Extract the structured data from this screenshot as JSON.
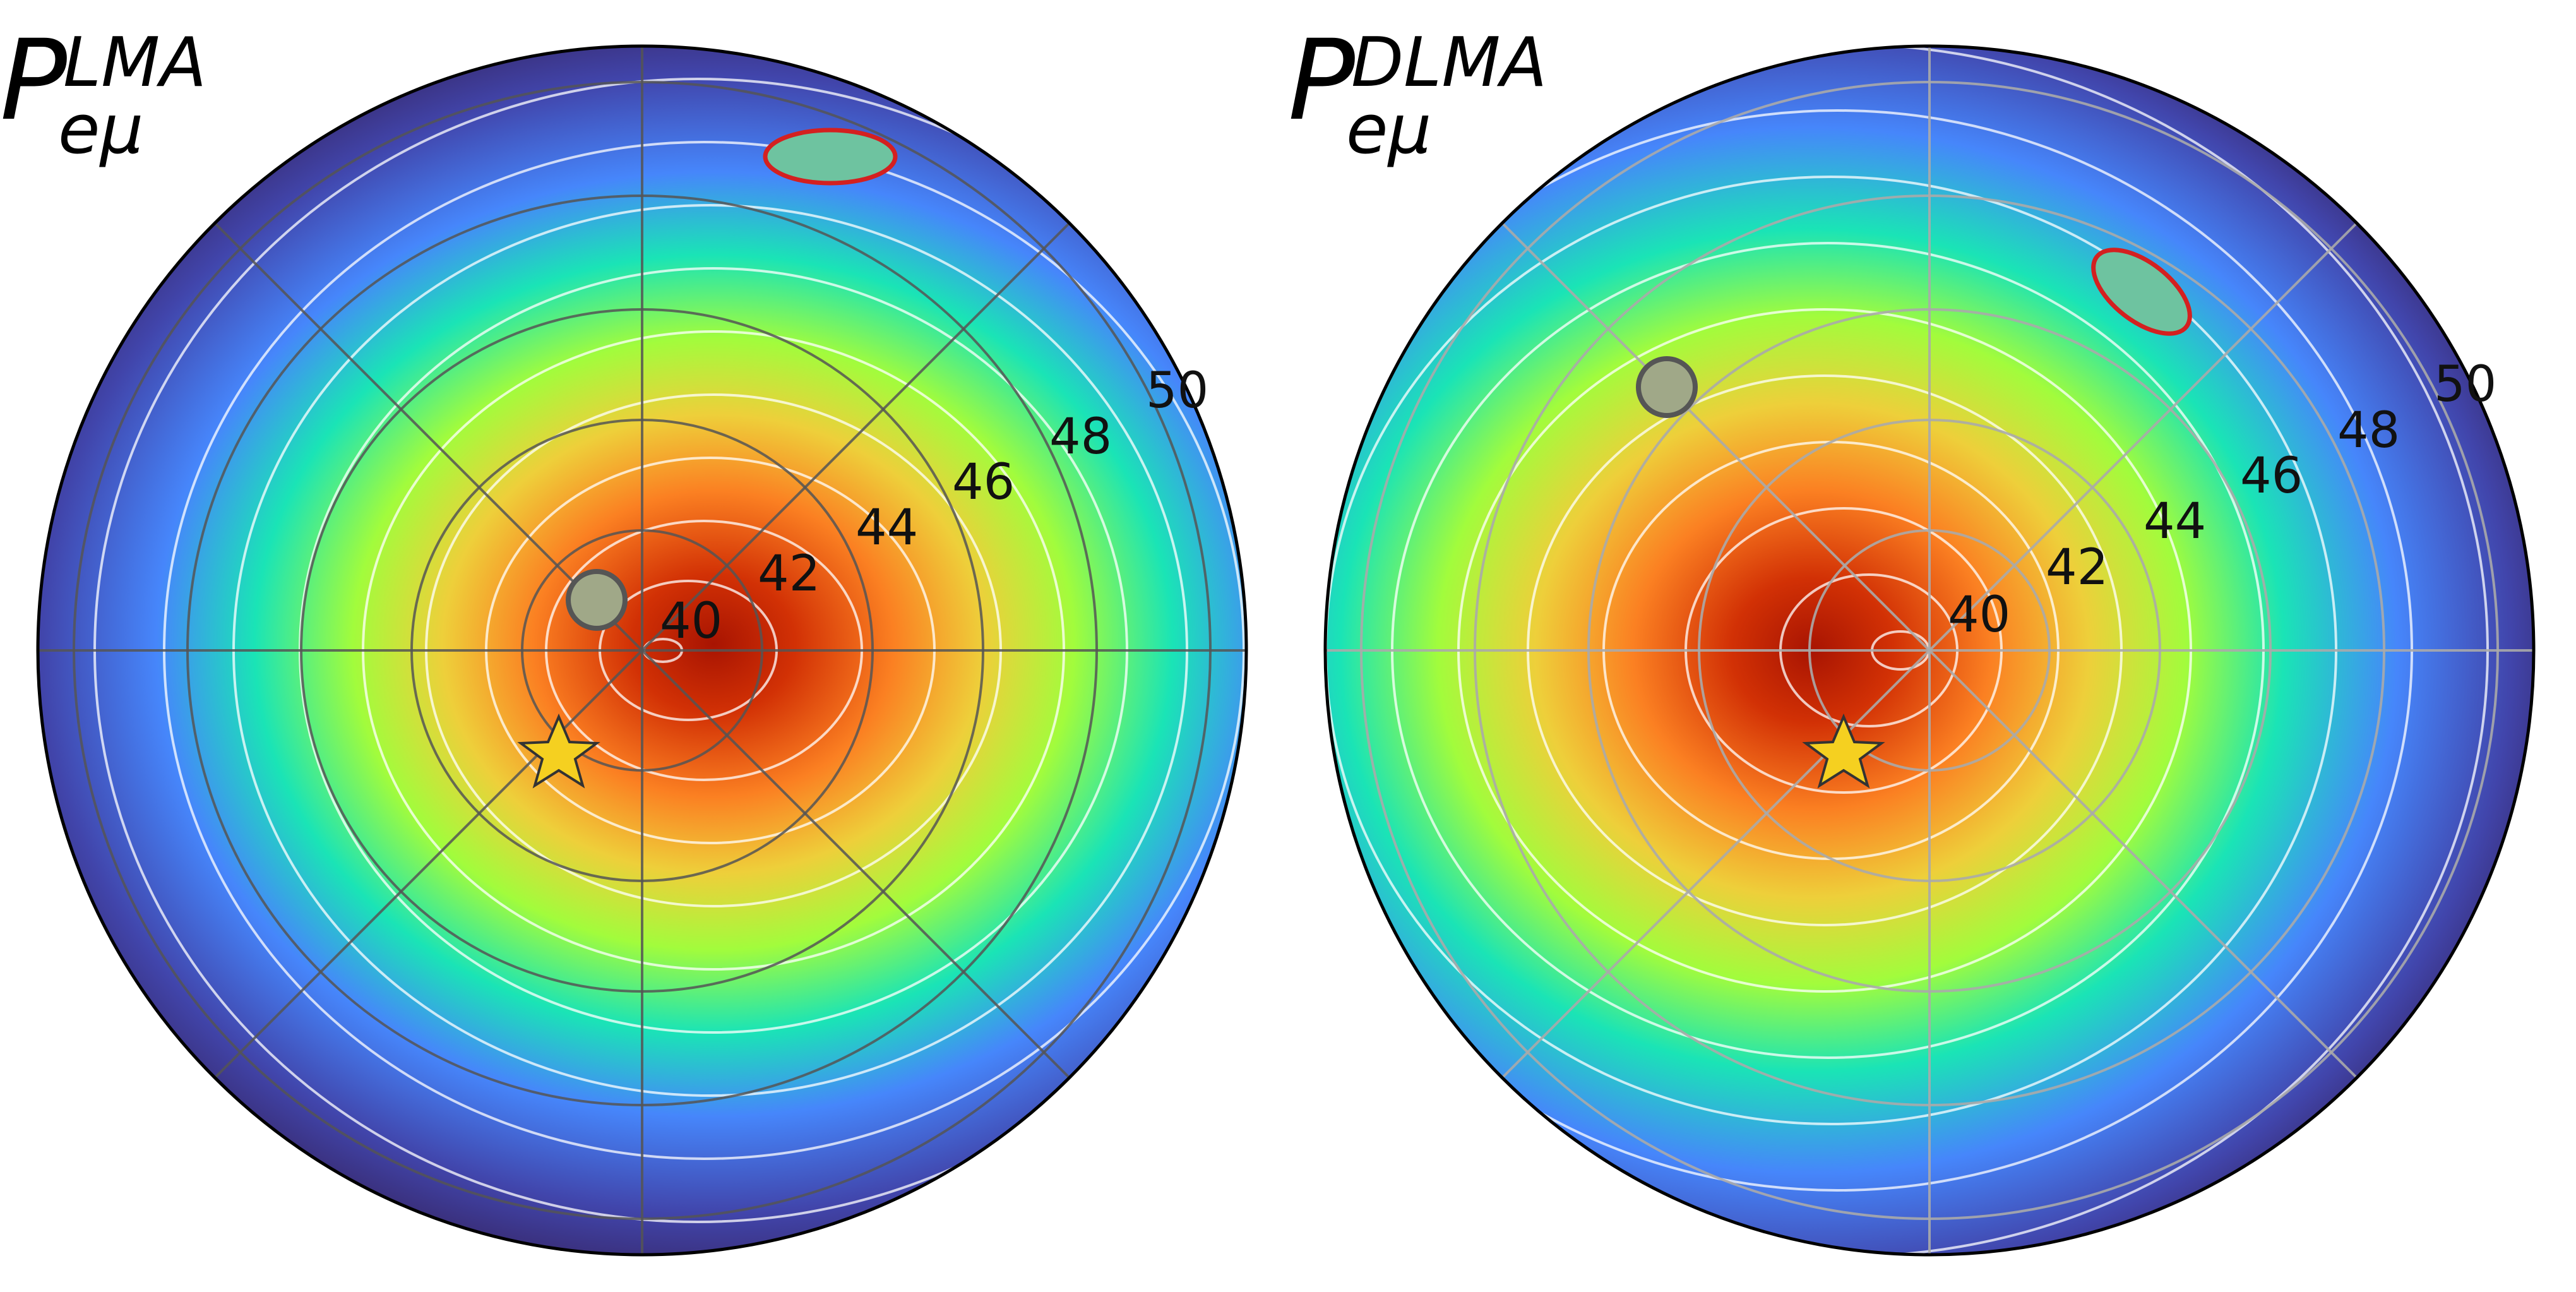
{
  "panels": [
    {
      "id": "left",
      "title": {
        "main": "P",
        "superscript": "LMA",
        "subscript": "eμ"
      },
      "ring_labels": [
        "40",
        "42",
        "44",
        "46",
        "48",
        "50"
      ],
      "markers": [
        "grey-circle",
        "red-ellipse",
        "yellow-star"
      ],
      "grid_color": "#555555"
    },
    {
      "id": "right",
      "title": {
        "main": "P",
        "superscript": "DLMA",
        "subscript": "eμ"
      },
      "ring_labels": [
        "40",
        "42",
        "44",
        "46",
        "48",
        "50"
      ],
      "markers": [
        "grey-circle",
        "red-ellipse",
        "yellow-star"
      ],
      "grid_color": "#aaaaaa"
    }
  ],
  "colors": {
    "colormap": [
      "#30123b",
      "#4145ab",
      "#4686fb",
      "#1ae4b6",
      "#a2fc3c",
      "#eecf3a",
      "#fb8022",
      "#d23105",
      "#7a0403"
    ],
    "marker_circle_fill": "#a0a888",
    "marker_ellipse_stroke": "#d42020",
    "marker_star_fill": "#f5d020"
  }
}
